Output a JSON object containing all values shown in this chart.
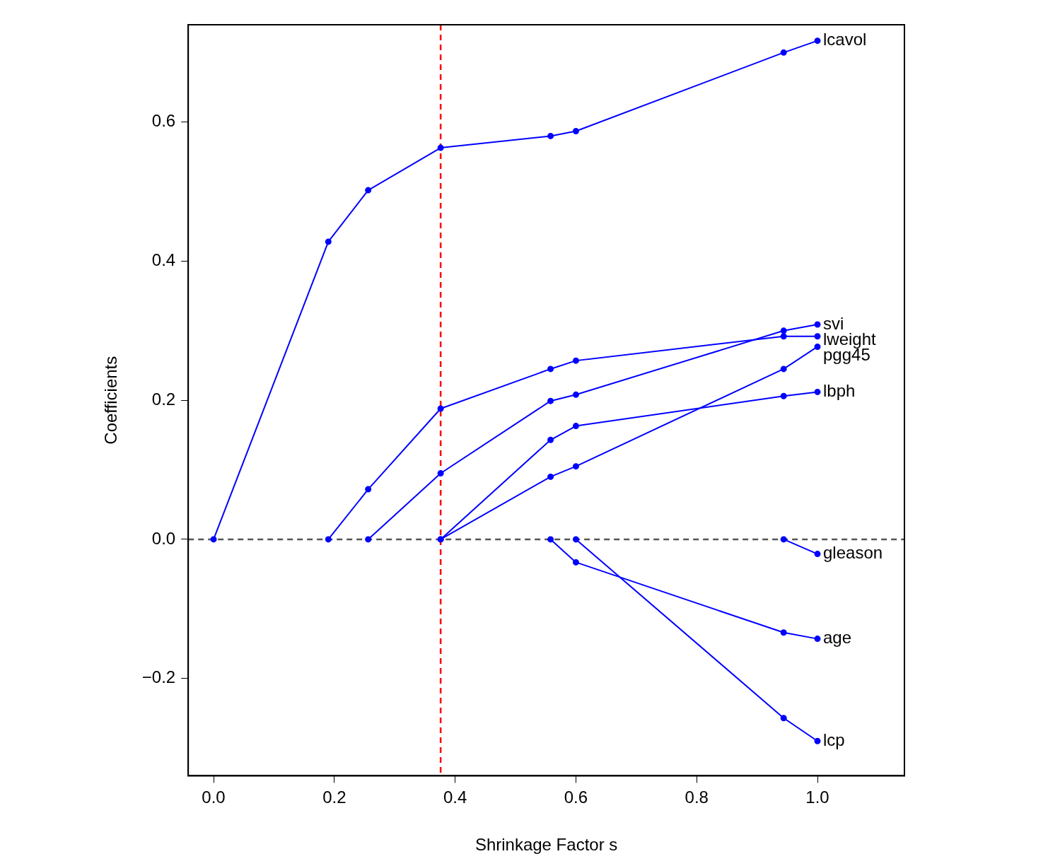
{
  "chart_data": {
    "type": "line",
    "xlabel": "Shrinkage Factor s",
    "ylabel": "Coefficients",
    "xlim": [
      -0.042,
      1.144
    ],
    "ylim": [
      -0.34,
      0.74
    ],
    "xticks": [
      {
        "value": 0,
        "label": "0.0"
      },
      {
        "value": 0.2,
        "label": "0.2"
      },
      {
        "value": 0.4,
        "label": "0.4"
      },
      {
        "value": 0.6,
        "label": "0.6"
      },
      {
        "value": 0.8,
        "label": "0.8"
      },
      {
        "value": 1,
        "label": "1.0"
      }
    ],
    "yticks": [
      {
        "value": -0.2,
        "label": "−0.2"
      },
      {
        "value": 0,
        "label": "0.0"
      },
      {
        "value": 0.2,
        "label": "0.2"
      },
      {
        "value": 0.4,
        "label": "0.4"
      },
      {
        "value": 0.6,
        "label": "0.6"
      }
    ],
    "grid": false,
    "legend": false,
    "marker": "circle",
    "line_style": "solid",
    "series": [
      {
        "name": "lcavol",
        "color": "#0000ff",
        "x": [
          0,
          0.19,
          0.256,
          0.376,
          0.558,
          0.6,
          0.944,
          1.0
        ],
        "values": [
          0,
          0.428,
          0.502,
          0.563,
          0.58,
          0.587,
          0.7,
          0.717
        ]
      },
      {
        "name": "svi",
        "color": "#0000ff",
        "x": [
          0.256,
          0.376,
          0.558,
          0.6,
          0.944,
          1.0
        ],
        "values": [
          0,
          0.095,
          0.199,
          0.208,
          0.3,
          0.309
        ]
      },
      {
        "name": "lweight",
        "color": "#0000ff",
        "x": [
          0.19,
          0.256,
          0.376,
          0.558,
          0.6,
          0.944,
          1.0
        ],
        "values": [
          0,
          0.072,
          0.188,
          0.245,
          0.257,
          0.292,
          0.292
        ]
      },
      {
        "name": "pgg45",
        "color": "#0000ff",
        "x": [
          0.376,
          0.558,
          0.6,
          0.944,
          1.0
        ],
        "values": [
          0,
          0.09,
          0.105,
          0.245,
          0.277
        ]
      },
      {
        "name": "lbph",
        "color": "#0000ff",
        "x": [
          0.376,
          0.558,
          0.6,
          0.944,
          1.0
        ],
        "values": [
          0,
          0.143,
          0.163,
          0.206,
          0.212
        ]
      },
      {
        "name": "gleason",
        "color": "#0000ff",
        "x": [
          0.944,
          1.0
        ],
        "values": [
          0,
          -0.021
        ]
      },
      {
        "name": "age",
        "color": "#0000ff",
        "x": [
          0.558,
          0.6,
          0.944,
          1.0
        ],
        "values": [
          0,
          -0.033,
          -0.134,
          -0.143
        ]
      },
      {
        "name": "lcp",
        "color": "#0000ff",
        "x": [
          0.6,
          0.944,
          1.0
        ],
        "values": [
          0,
          -0.257,
          -0.29
        ]
      }
    ],
    "ref_lines": [
      {
        "axis": "y",
        "value": 0,
        "color": "#555555",
        "line_style": "dashed"
      },
      {
        "axis": "x",
        "value": 0.376,
        "color": "#ff0000",
        "line_style": "dashed"
      }
    ]
  }
}
